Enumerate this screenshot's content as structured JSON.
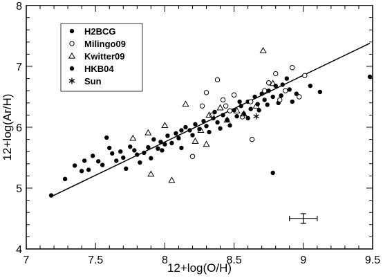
{
  "chart_data": {
    "type": "scatter",
    "xlabel": "12+log(O/H)",
    "ylabel": "12+log(Ar/H)",
    "xlim": [
      7,
      9.5
    ],
    "ylim": [
      4,
      8
    ],
    "x_ticks": [
      "7",
      "7.5",
      "8",
      "8.5",
      "9",
      "9.5"
    ],
    "y_ticks": [
      "4",
      "5",
      "6",
      "7",
      "8"
    ],
    "legend_position": "top-left",
    "series": [
      {
        "name": "H2BCG",
        "marker": "filled-circle",
        "points": [
          [
            7.18,
            4.88
          ],
          [
            7.28,
            5.15
          ],
          [
            7.35,
            5.37
          ],
          [
            7.4,
            5.28
          ],
          [
            7.42,
            5.45
          ],
          [
            7.45,
            5.3
          ],
          [
            7.48,
            5.53
          ],
          [
            7.52,
            5.44
          ],
          [
            7.55,
            5.38
          ],
          [
            7.58,
            5.83
          ],
          [
            7.6,
            5.66
          ],
          [
            7.62,
            5.57
          ],
          [
            7.65,
            5.45
          ],
          [
            7.68,
            5.6
          ],
          [
            7.7,
            5.5
          ],
          [
            7.72,
            5.32
          ],
          [
            7.75,
            5.68
          ],
          [
            7.78,
            5.62
          ],
          [
            7.8,
            5.55
          ],
          [
            7.82,
            5.42
          ],
          [
            7.85,
            5.58
          ],
          [
            7.88,
            5.67
          ],
          [
            7.9,
            5.49
          ],
          [
            7.92,
            5.8
          ],
          [
            7.95,
            5.65
          ],
          [
            7.97,
            5.76
          ],
          [
            8.0,
            5.72
          ],
          [
            8.02,
            5.86
          ],
          [
            8.05,
            5.74
          ],
          [
            8.08,
            5.9
          ],
          [
            8.1,
            5.82
          ],
          [
            8.12,
            5.66
          ],
          [
            8.15,
            6.0
          ],
          [
            8.18,
            5.95
          ],
          [
            8.2,
            5.87
          ],
          [
            8.22,
            6.05
          ],
          [
            8.25,
            5.97
          ],
          [
            8.28,
            6.1
          ],
          [
            8.3,
            6.02
          ],
          [
            8.32,
            5.92
          ],
          [
            8.35,
            6.15
          ],
          [
            8.38,
            6.08
          ],
          [
            8.4,
            5.98
          ],
          [
            8.42,
            6.2
          ],
          [
            8.45,
            6.12
          ],
          [
            8.47,
            6.03
          ],
          [
            8.5,
            6.28
          ],
          [
            8.52,
            6.18
          ],
          [
            8.55,
            6.35
          ],
          [
            8.57,
            6.22
          ],
          [
            8.6,
            6.42
          ],
          [
            8.62,
            6.3
          ],
          [
            8.65,
            6.5
          ],
          [
            8.67,
            6.38
          ],
          [
            8.7,
            6.55
          ],
          [
            8.72,
            6.45
          ],
          [
            8.75,
            6.6
          ],
          [
            8.78,
            6.5
          ],
          [
            8.8,
            6.68
          ],
          [
            8.82,
            6.4
          ],
          [
            8.85,
            6.7
          ],
          [
            8.88,
            6.8
          ],
          [
            8.9,
            6.62
          ],
          [
            8.95,
            6.55
          ],
          [
            8.78,
            5.25
          ],
          [
            9.05,
            6.68
          ],
          [
            9.12,
            6.58
          ],
          [
            9.48,
            6.83
          ]
        ]
      },
      {
        "name": "Milingo09",
        "marker": "open-circle",
        "points": [
          [
            8.2,
            5.52
          ],
          [
            8.27,
            6.35
          ],
          [
            8.3,
            6.57
          ],
          [
            8.34,
            6.2
          ],
          [
            8.38,
            6.78
          ],
          [
            8.42,
            6.45
          ],
          [
            8.47,
            6.27
          ],
          [
            8.5,
            6.53
          ],
          [
            8.56,
            6.17
          ],
          [
            8.62,
            6.42
          ],
          [
            8.63,
            5.8
          ],
          [
            8.72,
            6.6
          ],
          [
            8.75,
            6.73
          ],
          [
            8.8,
            6.88
          ],
          [
            8.83,
            6.45
          ],
          [
            8.87,
            6.6
          ],
          [
            8.92,
            6.98
          ],
          [
            8.97,
            6.5
          ],
          [
            9.01,
            6.85
          ],
          [
            8.44,
            6.35
          ]
        ]
      },
      {
        "name": "Kwitter09",
        "marker": "open-triangle",
        "points": [
          [
            7.77,
            5.82
          ],
          [
            7.88,
            5.91
          ],
          [
            7.9,
            5.23
          ],
          [
            8.05,
            5.13
          ],
          [
            8.22,
            5.77
          ],
          [
            8.26,
            5.95
          ],
          [
            8.3,
            5.72
          ],
          [
            8.32,
            6.2
          ],
          [
            8.4,
            6.32
          ],
          [
            8.45,
            6.12
          ],
          [
            8.52,
            6.27
          ],
          [
            8.57,
            6.22
          ],
          [
            8.66,
            6.35
          ],
          [
            8.71,
            7.26
          ],
          [
            8.78,
            6.72
          ],
          [
            8.0,
            6.03
          ],
          [
            8.15,
            6.38
          ]
        ]
      },
      {
        "name": "HKB04",
        "marker": "filled-circle",
        "points": [
          [
            7.98,
            5.62
          ],
          [
            8.12,
            5.95
          ],
          [
            8.36,
            6.25
          ],
          [
            8.54,
            6.42
          ],
          [
            8.68,
            6.28
          ],
          [
            8.74,
            6.37
          ],
          [
            8.84,
            6.52
          ],
          [
            8.92,
            6.42
          ],
          [
            8.6,
            6.15
          ]
        ]
      },
      {
        "name": "Sun",
        "marker": "asterisk",
        "points": [
          [
            8.66,
            6.18
          ]
        ]
      }
    ],
    "fit_line": {
      "x": [
        7.18,
        9.48
      ],
      "y": [
        4.86,
        7.38
      ]
    },
    "error_bar": {
      "x": 9.0,
      "y": 4.5,
      "xerr": 0.1,
      "yerr": 0.08
    }
  }
}
